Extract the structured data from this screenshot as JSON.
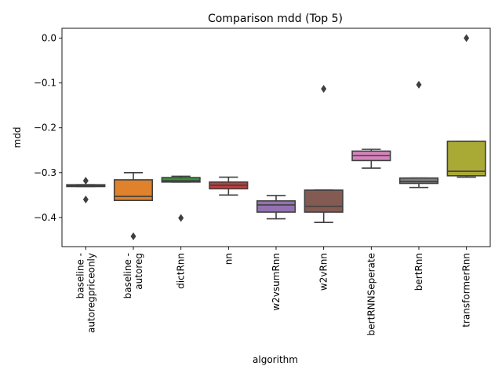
{
  "chart_data": {
    "type": "box",
    "title": "Comparison mdd (Top 5)",
    "xlabel": "algorithm",
    "ylabel": "mdd",
    "ylim": [
      -0.465,
      0.022
    ],
    "yticks": [
      0.0,
      -0.1,
      -0.2,
      -0.3,
      -0.4
    ],
    "ytick_labels": [
      "0.0",
      "−0.1",
      "−0.2",
      "−0.3",
      "−0.4"
    ],
    "grid": false,
    "categories": [
      {
        "label": "baseline -\nautoregpriceonly",
        "color": "#3a75af"
      },
      {
        "label": "baseline -\nautoreg",
        "color": "#e0812c"
      },
      {
        "label": "dictRnn",
        "color": "#3a923a"
      },
      {
        "label": "nn",
        "color": "#c03d3e"
      },
      {
        "label": "w2vsumRnn",
        "color": "#9372b2"
      },
      {
        "label": "w2vRnn",
        "color": "#845b53"
      },
      {
        "label": "bertRNNSeperate",
        "color": "#d684bd"
      },
      {
        "label": "bertRnn",
        "color": "#7f7f7f"
      },
      {
        "label": "transformerRnn",
        "color": "#a9aa35"
      }
    ],
    "stats": [
      {
        "q1": -0.331,
        "median": -0.329,
        "q3": -0.327,
        "whislo": -0.331,
        "whishi": -0.327,
        "fliers": [
          -0.318,
          -0.36
        ]
      },
      {
        "q1": -0.362,
        "median": -0.353,
        "q3": -0.316,
        "whislo": -0.362,
        "whishi": -0.3,
        "fliers": [
          -0.442
        ]
      },
      {
        "q1": -0.321,
        "median": -0.318,
        "q3": -0.311,
        "whislo": -0.321,
        "whishi": -0.308,
        "fliers": [
          -0.401
        ]
      },
      {
        "q1": -0.336,
        "median": -0.328,
        "q3": -0.321,
        "whislo": -0.35,
        "whishi": -0.31,
        "fliers": []
      },
      {
        "q1": -0.388,
        "median": -0.372,
        "q3": -0.363,
        "whislo": -0.403,
        "whishi": -0.351,
        "fliers": []
      },
      {
        "q1": -0.388,
        "median": -0.375,
        "q3": -0.339,
        "whislo": -0.411,
        "whishi": -0.339,
        "fliers": [
          -0.113
        ]
      },
      {
        "q1": -0.273,
        "median": -0.262,
        "q3": -0.252,
        "whislo": -0.29,
        "whishi": -0.248,
        "fliers": []
      },
      {
        "q1": -0.324,
        "median": -0.32,
        "q3": -0.312,
        "whislo": -0.333,
        "whishi": -0.312,
        "fliers": [
          -0.104
        ]
      },
      {
        "q1": -0.307,
        "median": -0.297,
        "q3": -0.23,
        "whislo": -0.31,
        "whishi": -0.23,
        "fliers": [
          0.0
        ]
      }
    ]
  }
}
